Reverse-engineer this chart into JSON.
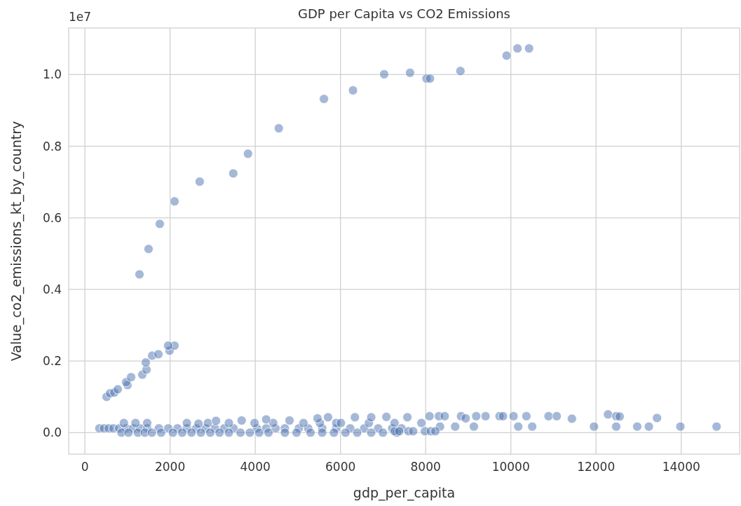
{
  "chart_data": {
    "type": "scatter",
    "title": "GDP per Capita vs CO2 Emissions",
    "xlabel": "gdp_per_capita",
    "ylabel": "Value_co2_emissions_kt_by_country",
    "annotations": [
      "1e7"
    ],
    "grid": true,
    "marker": "circle",
    "xlim": [
      -380,
      15370
    ],
    "xticks": [
      0,
      2000,
      4000,
      6000,
      8000,
      10000,
      12000,
      14000
    ],
    "ylim": [
      -0.06,
      1.13
    ],
    "yticks": [
      {
        "value": 0,
        "label": "0.0"
      },
      0.2,
      0.4,
      0.6,
      0.8,
      {
        "value": 1,
        "label": "1.0"
      }
    ],
    "series": [
      {
        "color": "#4c72b0",
        "x": [
          509,
          592,
          690,
          772,
          1002,
          970,
          1085,
          1348,
          1446,
          1430,
          1578,
          1726,
          1988,
          2104,
          1955,
          1282,
          1495,
          1758,
          2104,
          2695,
          3484,
          3829,
          4552,
          5612,
          6294,
          7025,
          7633,
          8020,
          8102,
          8817,
          9901,
          10156,
          10427,
          340,
          449,
          559,
          668,
          805,
          970,
          1134,
          1298,
          1463,
          1737,
          1956,
          2175,
          2394,
          2613,
          2832,
          3052,
          3270,
          3489,
          4038,
          4256,
          4475,
          4694,
          5023,
          5242,
          5571,
          5900,
          6228,
          6557,
          6886,
          7214,
          7433,
          860,
          1024,
          1244,
          1408,
          1573,
          1791,
          2066,
          2284,
          2503,
          2723,
          2942,
          3161,
          3380,
          3653,
          3873,
          4092,
          4311,
          4695,
          4968,
          5297,
          5571,
          5846,
          6118,
          6393,
          6722,
          6996,
          7325,
          915,
          1188,
          1463,
          2394,
          2667,
          2887,
          3380,
          3982,
          4421,
          5132,
          5517,
          5900,
          6010,
          6667,
          7269,
          3078,
          3681,
          4256,
          4804,
          5461,
          5708,
          6339,
          6722,
          7078,
          7571,
          8091,
          8311,
          8447,
          8830,
          8940,
          9187,
          9406,
          9734,
          9817,
          10063,
          10365,
          10884,
          11077,
          11433,
          12281,
          12473,
          12555,
          13431,
          7900,
          8337,
          8693,
          9132,
          10173,
          10501,
          11952,
          12473,
          12966,
          13240,
          13980,
          14829,
          7269,
          7379,
          7597,
          7707,
          7982,
          8118,
          8228
        ],
        "values": [
          0.1,
          0.11,
          0.112,
          0.121,
          0.133,
          0.141,
          0.155,
          0.162,
          0.176,
          0.196,
          0.215,
          0.219,
          0.229,
          0.243,
          0.243,
          0.442,
          0.513,
          0.583,
          0.646,
          0.701,
          0.724,
          0.779,
          0.85,
          0.932,
          0.956,
          1.001,
          1.005,
          0.989,
          0.989,
          1.01,
          1.053,
          1.073,
          1.073,
          0.012,
          0.012,
          0.012,
          0.012,
          0.012,
          0.012,
          0.012,
          0.012,
          0.012,
          0.012,
          0.012,
          0.012,
          0.012,
          0.012,
          0.012,
          0.012,
          0.012,
          0.012,
          0.012,
          0.012,
          0.012,
          0.012,
          0.012,
          0.012,
          0.012,
          0.012,
          0.012,
          0.012,
          0.012,
          0.012,
          0.012,
          0.0,
          0.0,
          0.0,
          0.0,
          0.0,
          0.0,
          0.0,
          0.0,
          0.0,
          0.0,
          0.0,
          0.0,
          0.0,
          0.0,
          0.0,
          0.0,
          0.0,
          0.0,
          0.0,
          0.0,
          0.0,
          0.0,
          0.0,
          0.0,
          0.0,
          0.0,
          0.0,
          0.027,
          0.027,
          0.027,
          0.027,
          0.025,
          0.027,
          0.027,
          0.027,
          0.027,
          0.027,
          0.027,
          0.027,
          0.027,
          0.027,
          0.027,
          0.033,
          0.034,
          0.037,
          0.034,
          0.04,
          0.043,
          0.043,
          0.043,
          0.044,
          0.043,
          0.046,
          0.046,
          0.046,
          0.046,
          0.04,
          0.046,
          0.046,
          0.046,
          0.046,
          0.046,
          0.046,
          0.046,
          0.046,
          0.039,
          0.051,
          0.046,
          0.045,
          0.041,
          0.027,
          0.017,
          0.017,
          0.017,
          0.017,
          0.017,
          0.017,
          0.017,
          0.017,
          0.017,
          0.017,
          0.017,
          0.004,
          0.004,
          0.004,
          0.004,
          0.004,
          0.004,
          0.004
        ]
      }
    ]
  }
}
